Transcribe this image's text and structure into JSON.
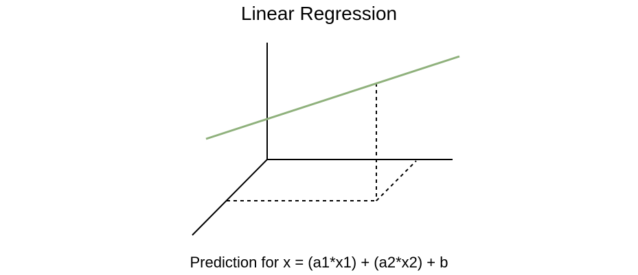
{
  "title": "Linear Regression",
  "caption": "Prediction for x = (a1*x1) + (a2*x2) + b",
  "colors": {
    "regression_line": "#8fb17c",
    "axis": "#000000",
    "projection": "#000000",
    "background": "#ffffff"
  }
}
